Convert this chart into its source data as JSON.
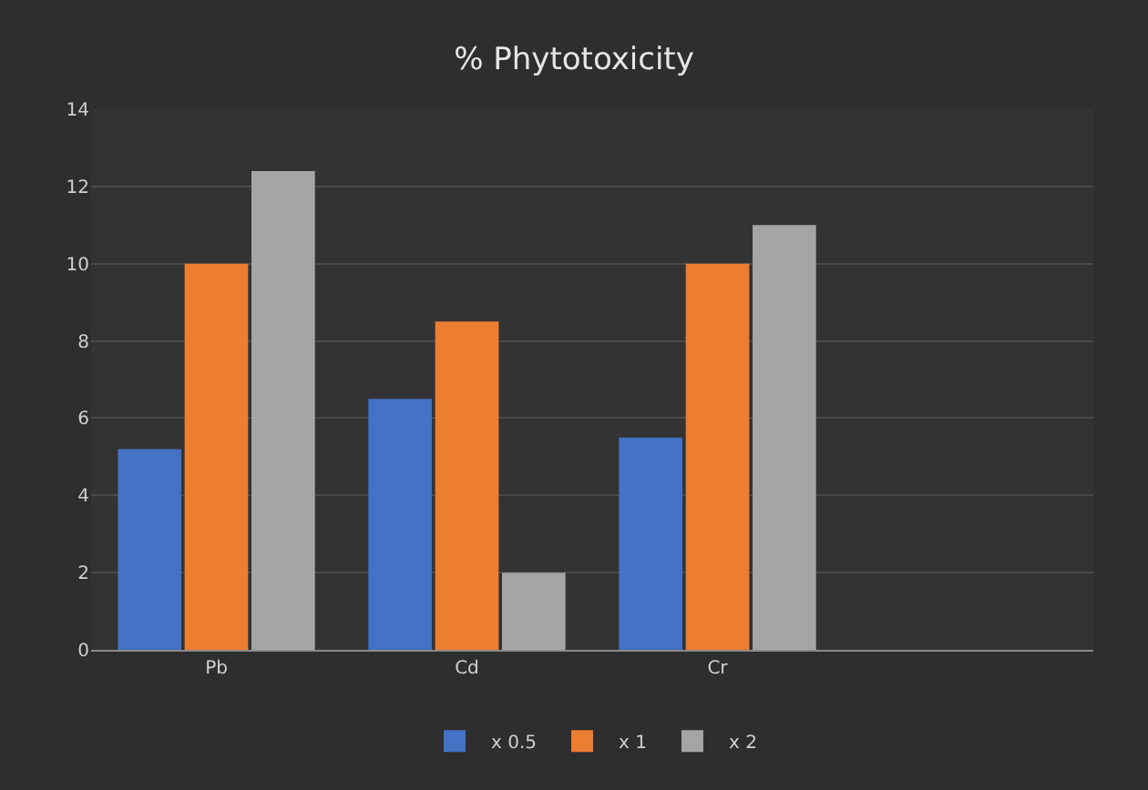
{
  "chart_data": {
    "type": "bar",
    "title": "% Phytotoxicity",
    "categories": [
      "Pb",
      "Cd",
      "Cr",
      null
    ],
    "series": [
      {
        "name": "x 0.5",
        "color": "#4472c4",
        "values": [
          5.2,
          6.5,
          5.5,
          null
        ]
      },
      {
        "name": "x 1",
        "color": "#ed7d31",
        "values": [
          10,
          8.5,
          10,
          null
        ]
      },
      {
        "name": "x 2",
        "color": "#a5a5a5",
        "values": [
          12.4,
          2,
          11,
          null
        ]
      }
    ],
    "ylim": [
      0,
      14
    ],
    "yticks": [
      0,
      2,
      4,
      6,
      8,
      10,
      12,
      14
    ],
    "grid": "y",
    "legend": "bottom"
  }
}
